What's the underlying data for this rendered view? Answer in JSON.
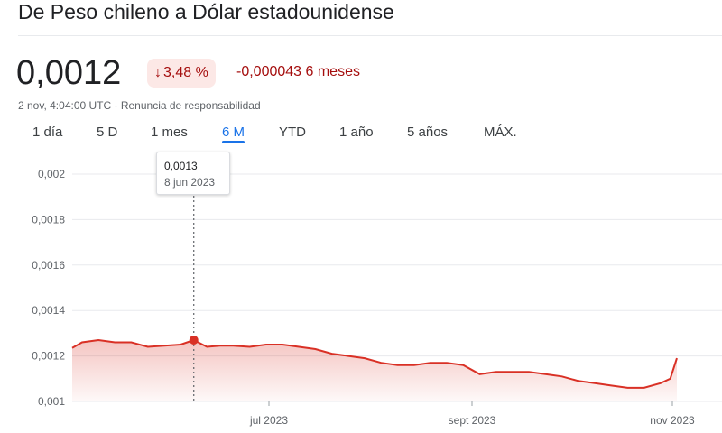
{
  "header": {
    "title": "De Peso chileno a Dólar estadounidense"
  },
  "quote": {
    "price": "0,0012",
    "change_percent": "3,48 %",
    "change_abs": "-0,000043 6 meses",
    "timestamp": "2 nov, 4:04:00 UTC",
    "disclaimer": "Renuncia de responsabilidad",
    "separator": " · "
  },
  "tabs": [
    {
      "label": "1 día",
      "active": false
    },
    {
      "label": "5 D",
      "active": false
    },
    {
      "label": "1 mes",
      "active": false
    },
    {
      "label": "6 M",
      "active": true
    },
    {
      "label": "YTD",
      "active": false
    },
    {
      "label": "1 año",
      "active": false
    },
    {
      "label": "5 años",
      "active": false
    },
    {
      "label": "MÁX.",
      "active": false
    }
  ],
  "tooltip": {
    "value": "0,0013",
    "date": "8 jun 2023"
  },
  "colors": {
    "negative": "#d93025",
    "accent": "#1a73e8",
    "grid": "#e8eaed"
  },
  "chart_data": {
    "type": "area",
    "y_ticks": [
      "0,001",
      "0,0012",
      "0,0014",
      "0,0016",
      "0,0018",
      "0,002"
    ],
    "x_ticks": [
      "jul 2023",
      "sept 2023",
      "nov 2023"
    ],
    "ylim": [
      0.001,
      0.002
    ],
    "xlim": [
      "2023-05-02",
      "2023-11-02"
    ],
    "highlight": {
      "x": "2023-06-08",
      "y": 0.00127
    },
    "x": [
      "2023-05-02",
      "2023-05-05",
      "2023-05-10",
      "2023-05-15",
      "2023-05-20",
      "2023-05-25",
      "2023-05-30",
      "2023-06-04",
      "2023-06-08",
      "2023-06-12",
      "2023-06-16",
      "2023-06-20",
      "2023-06-25",
      "2023-06-30",
      "2023-07-05",
      "2023-07-10",
      "2023-07-15",
      "2023-07-20",
      "2023-07-25",
      "2023-07-30",
      "2023-08-04",
      "2023-08-09",
      "2023-08-14",
      "2023-08-19",
      "2023-08-24",
      "2023-08-29",
      "2023-09-03",
      "2023-09-08",
      "2023-09-13",
      "2023-09-18",
      "2023-09-23",
      "2023-09-28",
      "2023-10-03",
      "2023-10-08",
      "2023-10-13",
      "2023-10-18",
      "2023-10-23",
      "2023-10-28",
      "2023-10-31",
      "2023-11-02"
    ],
    "values": [
      0.001235,
      0.00126,
      0.00127,
      0.00126,
      0.00126,
      0.00124,
      0.001245,
      0.00125,
      0.00127,
      0.00124,
      0.001245,
      0.001245,
      0.00124,
      0.00125,
      0.00125,
      0.00124,
      0.00123,
      0.00121,
      0.0012,
      0.00119,
      0.00117,
      0.00116,
      0.00116,
      0.00117,
      0.00117,
      0.00116,
      0.00112,
      0.00113,
      0.00113,
      0.00113,
      0.00112,
      0.00111,
      0.00109,
      0.00108,
      0.00107,
      0.00106,
      0.00106,
      0.00108,
      0.0011,
      0.00119
    ]
  }
}
